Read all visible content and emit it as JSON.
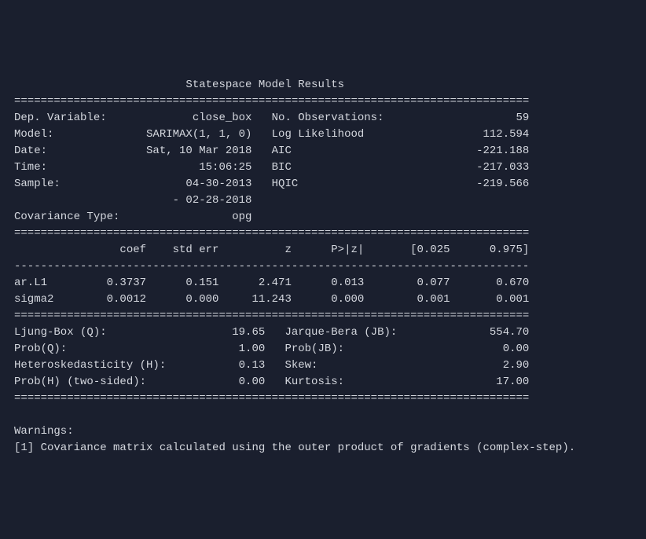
{
  "title": "Statespace Model Results",
  "divider_eq": "==============================================================================",
  "divider_dash": "------------------------------------------------------------------------------",
  "header_rows": [
    {
      "l1": "Dep. Variable:",
      "v1": "close_box",
      "l2": "No. Observations:",
      "v2": "59"
    },
    {
      "l1": "Model:",
      "v1": "SARIMAX(1, 1, 0)",
      "l2": "Log Likelihood",
      "v2": "112.594"
    },
    {
      "l1": "Date:",
      "v1": "Sat, 10 Mar 2018",
      "l2": "AIC",
      "v2": "-221.188"
    },
    {
      "l1": "Time:",
      "v1": "15:06:25",
      "l2": "BIC",
      "v2": "-217.033"
    },
    {
      "l1": "Sample:",
      "v1": "04-30-2013",
      "l2": "HQIC",
      "v2": "-219.566"
    },
    {
      "l1": "",
      "v1": "- 02-28-2018",
      "l2": "",
      "v2": ""
    },
    {
      "l1": "Covariance Type:",
      "v1": "opg",
      "l2": "",
      "v2": ""
    }
  ],
  "coef_header": {
    "c1": "coef",
    "c2": "std err",
    "c3": "z",
    "c4": "P>|z|",
    "c5": "[0.025",
    "c6": "0.975]"
  },
  "coef_rows": [
    {
      "name": "ar.L1",
      "c1": "0.3737",
      "c2": "0.151",
      "c3": "2.471",
      "c4": "0.013",
      "c5": "0.077",
      "c6": "0.670"
    },
    {
      "name": "sigma2",
      "c1": "0.0012",
      "c2": "0.000",
      "c3": "11.243",
      "c4": "0.000",
      "c5": "0.001",
      "c6": "0.001"
    }
  ],
  "diag_rows": [
    {
      "l1": "Ljung-Box (Q):",
      "v1": "19.65",
      "l2": "Jarque-Bera (JB):",
      "v2": "554.70"
    },
    {
      "l1": "Prob(Q):",
      "v1": "1.00",
      "l2": "Prob(JB):",
      "v2": "0.00"
    },
    {
      "l1": "Heteroskedasticity (H):",
      "v1": "0.13",
      "l2": "Skew:",
      "v2": "2.90"
    },
    {
      "l1": "Prob(H) (two-sided):",
      "v1": "0.00",
      "l2": "Kurtosis:",
      "v2": "17.00"
    }
  ],
  "warnings_label": "Warnings:",
  "warnings_text": "[1] Covariance matrix calculated using the outer product of gradients (complex-step).",
  "colors": {
    "background": "#1a1f2e",
    "text": "#d4d7de"
  },
  "layout": {
    "col1_label_w": 18,
    "col1_val_w": 18,
    "col2_label_w": 22,
    "col2_val_w": 20,
    "coef_name_w": 10,
    "coef_col_w": 10,
    "diag_l1_w": 28,
    "diag_v1_w": 10,
    "diag_l2_w": 20,
    "diag_v2_w": 20
  }
}
